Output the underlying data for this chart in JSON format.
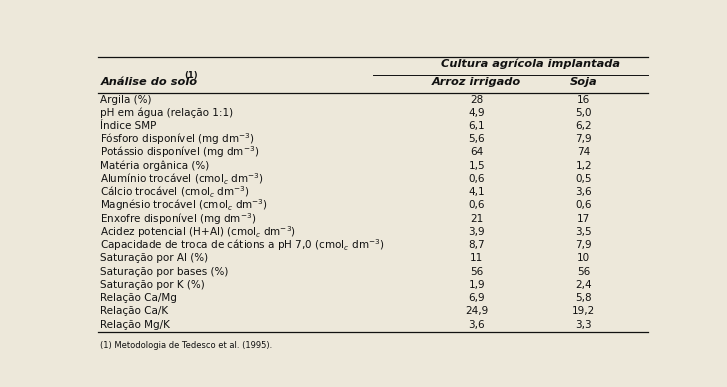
{
  "header_group": "Cultura agrícola implantada",
  "header_left": "Análise do solo",
  "header_left_sup": "(1)",
  "col1_header": "Arroz irrigado",
  "col2_header": "Soja",
  "rows": [
    {
      "label": "Argila (%)",
      "v1": "28",
      "v2": "16"
    },
    {
      "label": "pH em água (relação 1:1)",
      "v1": "4,9",
      "v2": "5,0"
    },
    {
      "label": "Índice SMP",
      "v1": "6,1",
      "v2": "6,2"
    },
    {
      "label": "Fósforo disponível (mg dm-3)",
      "v1": "5,6",
      "v2": "7,9"
    },
    {
      "label": "Potássio disponível (mg dm-3)",
      "v1": "64",
      "v2": "74"
    },
    {
      "label": "Matéria orgânica (%)",
      "v1": "1,5",
      "v2": "1,2"
    },
    {
      "label": "Alumínio trocável (cmolc dm-3)",
      "v1": "0,6",
      "v2": "0,5"
    },
    {
      "label": "Cálcio trocável (cmolc dm-3)",
      "v1": "4,1",
      "v2": "3,6"
    },
    {
      "label": "Magnésio trocável (cmolc dm-3)",
      "v1": "0,6",
      "v2": "0,6"
    },
    {
      "label": "Enxofre disponível (mg dm-3)",
      "v1": "21",
      "v2": "17"
    },
    {
      "label": "Acidez potencial (H+Al) (cmolc dm-3)",
      "v1": "3,9",
      "v2": "3,5"
    },
    {
      "label": "Capacidade de troca de cátions a pH 7,0 (cmolc dm-3)",
      "v1": "8,7",
      "v2": "7,9"
    },
    {
      "label": "Saturação por Al (%)",
      "v1": "11",
      "v2": "10"
    },
    {
      "label": "Saturação por bases (%)",
      "v1": "56",
      "v2": "56"
    },
    {
      "label": "Saturação por K (%)",
      "v1": "1,9",
      "v2": "2,4"
    },
    {
      "label": "Relação Ca/Mg",
      "v1": "6,9",
      "v2": "5,8"
    },
    {
      "label": "Relação Ca/K",
      "v1": "24,9",
      "v2": "19,2"
    },
    {
      "label": "Relação Mg/K",
      "v1": "3,6",
      "v2": "3,3"
    }
  ],
  "footnote": "(1) Metodologia de Tedesco et al. (1995).",
  "bg_color": "#ede8da",
  "text_color": "#111111",
  "font_size": 7.5,
  "header_font_size": 8.2,
  "fig_width": 7.27,
  "fig_height": 3.87,
  "dpi": 100
}
